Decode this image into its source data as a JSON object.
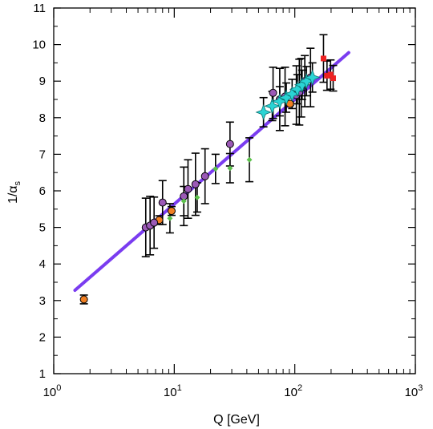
{
  "chart_data": {
    "type": "scatter",
    "xlabel": "Q [GeV]",
    "ylabel": {
      "main": "1/α",
      "sub": "s"
    },
    "x_scale": "log",
    "xlim": [
      1,
      1000
    ],
    "ylim": [
      1,
      11
    ],
    "x_ticks": [
      {
        "value": 1,
        "base": "10",
        "exp": "0"
      },
      {
        "value": 10,
        "base": "10",
        "exp": "1"
      },
      {
        "value": 100,
        "base": "10",
        "exp": "2"
      },
      {
        "value": 1000,
        "base": "10",
        "exp": "3"
      }
    ],
    "y_ticks": [
      "1",
      "2",
      "3",
      "4",
      "5",
      "6",
      "7",
      "8",
      "9",
      "10",
      "11"
    ],
    "grid": false,
    "legend": "none",
    "fit_line": {
      "color": "#7a3cf0",
      "x": [
        1.5,
        280
      ],
      "y": [
        3.28,
        9.78
      ]
    },
    "series": [
      {
        "marker": "circle",
        "color": "#f07f22",
        "points": [
          {
            "x": 1.78,
            "y": 3.03,
            "err": 0.12
          },
          {
            "x": 7.5,
            "y": 5.2,
            "err": 0.12
          },
          {
            "x": 9.5,
            "y": 5.45,
            "err": 0.12
          },
          {
            "x": 91.2,
            "y": 8.38,
            "err": 0.05
          }
        ]
      },
      {
        "marker": "circle",
        "color": "#9b59b6",
        "points": [
          {
            "x": 5.8,
            "y": 5.0,
            "err": 0.8
          },
          {
            "x": 6.3,
            "y": 5.05,
            "err": 0.8
          },
          {
            "x": 6.8,
            "y": 5.13,
            "err": 0.7
          },
          {
            "x": 8.0,
            "y": 5.68,
            "err": 0.6
          },
          {
            "x": 12.0,
            "y": 5.85,
            "err": 0.8
          },
          {
            "x": 13.0,
            "y": 6.05,
            "err": 0.8
          },
          {
            "x": 15.0,
            "y": 6.18,
            "err": 0.85
          },
          {
            "x": 18.0,
            "y": 6.4,
            "err": 0.75
          },
          {
            "x": 29.0,
            "y": 7.28,
            "err": 0.6
          },
          {
            "x": 66.0,
            "y": 8.68,
            "err": 0.7
          },
          {
            "x": 75.0,
            "y": 8.5,
            "err": 0.85
          },
          {
            "x": 83.0,
            "y": 8.58,
            "err": 0.8
          },
          {
            "x": 103.0,
            "y": 8.62,
            "err": 0.8
          },
          {
            "x": 109.0,
            "y": 8.7,
            "err": 0.9
          },
          {
            "x": 113.0,
            "y": 8.82,
            "err": 0.8
          },
          {
            "x": 121.0,
            "y": 9.0,
            "err": 0.7
          },
          {
            "x": 135.0,
            "y": 9.1,
            "err": 0.8
          }
        ]
      },
      {
        "marker": "diamond",
        "color": "#5cc14c",
        "points": [
          {
            "x": 9.2,
            "y": 5.25,
            "err": 0.4
          },
          {
            "x": 12.0,
            "y": 5.72,
            "err": 0.4
          },
          {
            "x": 15.5,
            "y": 5.82,
            "err": 0.4
          },
          {
            "x": 22.0,
            "y": 6.6,
            "err": 0.4
          },
          {
            "x": 29.0,
            "y": 6.62,
            "err": 0.4
          },
          {
            "x": 42.0,
            "y": 6.85,
            "err": 0.6
          }
        ]
      },
      {
        "marker": "star",
        "color": "#2ad4d4",
        "points": [
          {
            "x": 55.0,
            "y": 8.15,
            "err": 0.4
          },
          {
            "x": 65.0,
            "y": 8.32,
            "err": 0.4
          },
          {
            "x": 75.0,
            "y": 8.45,
            "err": 0.4
          },
          {
            "x": 85.0,
            "y": 8.55,
            "err": 0.4
          },
          {
            "x": 95.0,
            "y": 8.65,
            "err": 0.4
          },
          {
            "x": 105.0,
            "y": 8.78,
            "err": 0.4
          },
          {
            "x": 115.0,
            "y": 8.9,
            "err": 0.4
          },
          {
            "x": 125.0,
            "y": 9.0,
            "err": 0.4
          },
          {
            "x": 140.0,
            "y": 9.1,
            "err": 0.4
          }
        ]
      },
      {
        "marker": "square",
        "color": "#ee2222",
        "points": [
          {
            "x": 173.0,
            "y": 9.62,
            "err": 0.65
          },
          {
            "x": 185.0,
            "y": 9.15,
            "err": 0.4
          },
          {
            "x": 198.0,
            "y": 9.18,
            "err": 0.4
          },
          {
            "x": 208.0,
            "y": 9.08,
            "err": 0.35
          }
        ]
      }
    ]
  }
}
